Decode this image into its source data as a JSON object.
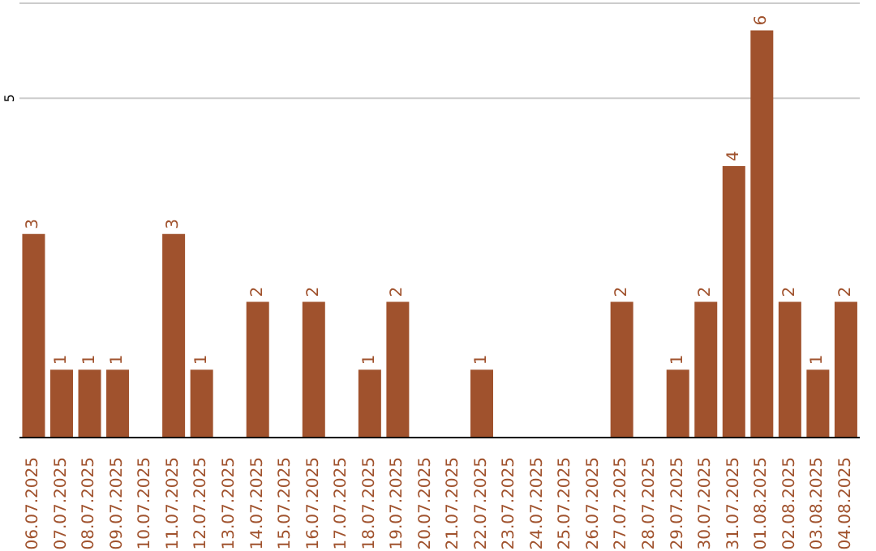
{
  "chart_data": {
    "type": "bar",
    "categories": [
      "06.07.2025",
      "07.07.2025",
      "08.07.2025",
      "09.07.2025",
      "10.07.2025",
      "11.07.2025",
      "12.07.2025",
      "13.07.2025",
      "14.07.2025",
      "15.07.2025",
      "16.07.2025",
      "17.07.2025",
      "18.07.2025",
      "19.07.2025",
      "20.07.2025",
      "21.07.2025",
      "22.07.2025",
      "23.07.2025",
      "24.07.2025",
      "25.07.2025",
      "26.07.2025",
      "27.07.2025",
      "28.07.2025",
      "29.07.2025",
      "30.07.2025",
      "31.07.2025",
      "01.08.2025",
      "02.08.2025",
      "03.08.2025",
      "04.08.2025"
    ],
    "values": [
      3,
      1,
      1,
      1,
      0,
      3,
      1,
      0,
      2,
      0,
      2,
      0,
      1,
      2,
      0,
      0,
      1,
      0,
      0,
      0,
      0,
      2,
      0,
      1,
      2,
      4,
      6,
      2,
      1,
      2
    ],
    "value_labels": [
      "3",
      "1",
      "1",
      "1",
      null,
      "3",
      "1",
      null,
      "2",
      null,
      "2",
      null,
      "1",
      "2",
      null,
      null,
      "1",
      null,
      null,
      null,
      null,
      "2",
      null,
      "1",
      "2",
      "4",
      "6",
      "2",
      "1",
      "2"
    ],
    "color": "#a0522d",
    "ylim": [
      0,
      6.4
    ],
    "yticks": [
      {
        "value": 0,
        "label": null
      },
      5
    ],
    "grid": "y"
  }
}
